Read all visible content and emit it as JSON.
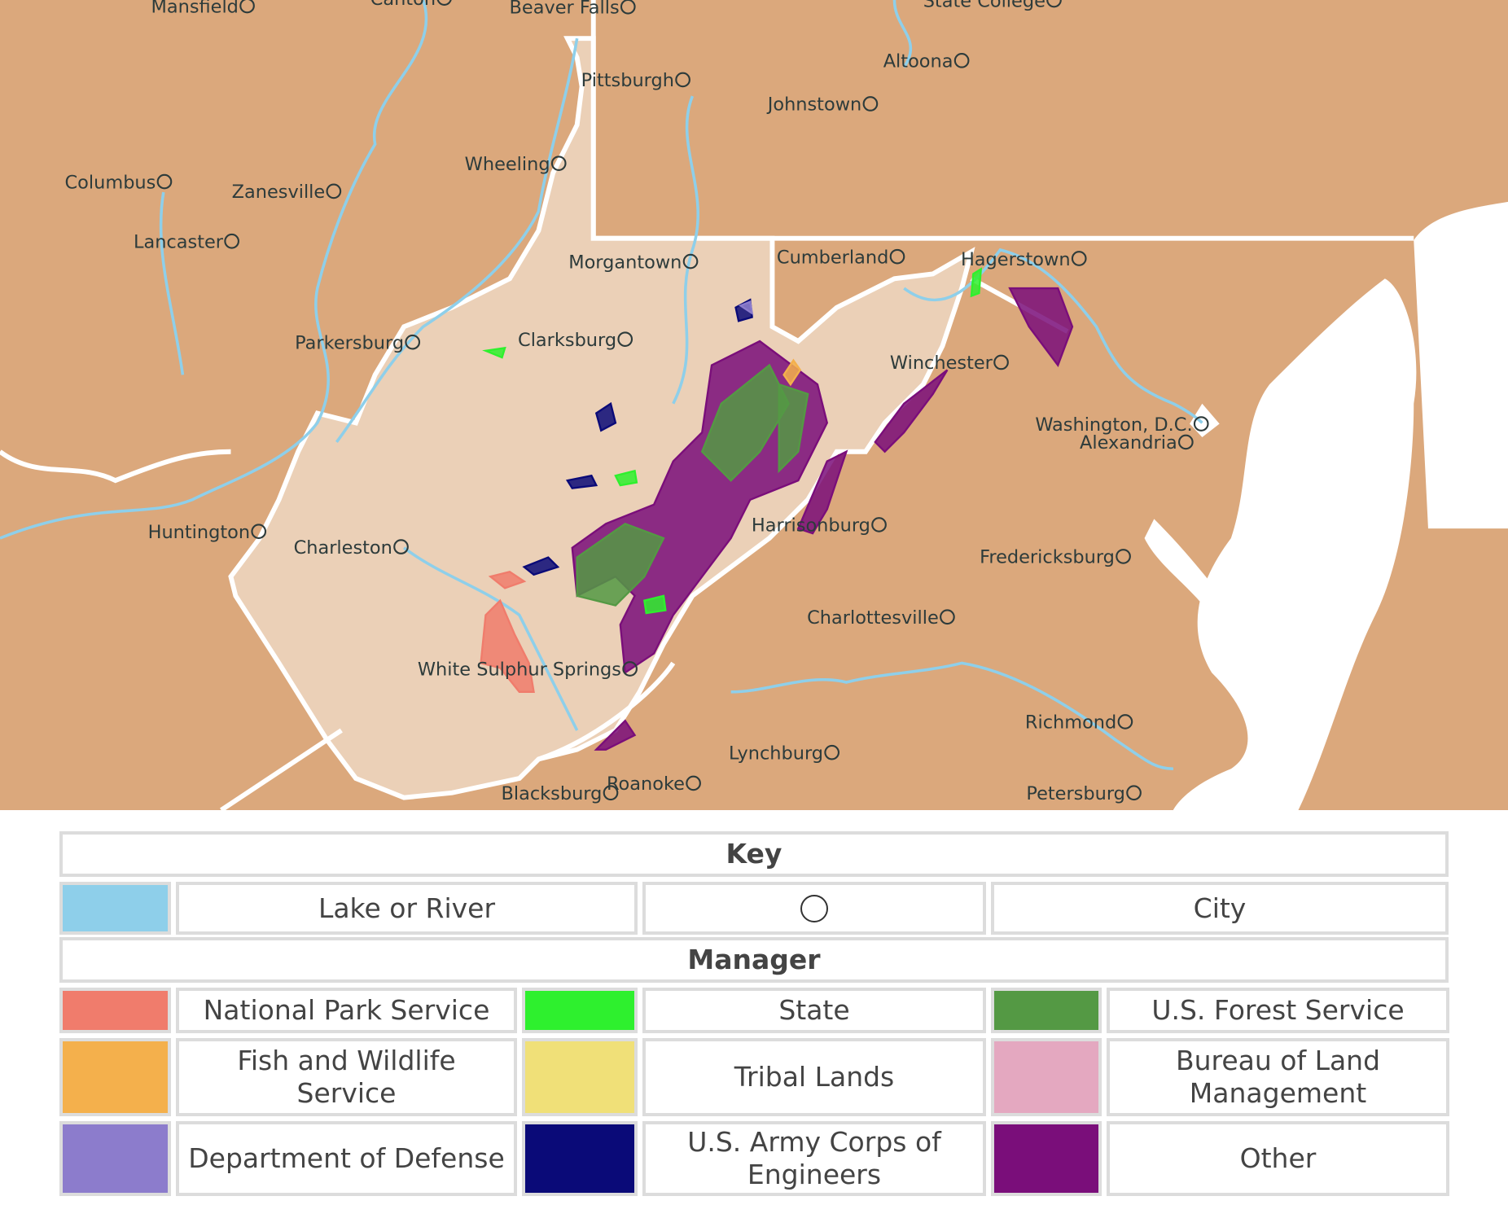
{
  "map": {
    "cities": [
      "Mansfield",
      "Canton",
      "Beaver Falls",
      "State College",
      "Pittsburgh",
      "Altoona",
      "Johnstown",
      "Wheeling",
      "Columbus",
      "Zanesville",
      "Lancaster",
      "Morgantown",
      "Cumberland",
      "Hagerstown",
      "Parkersburg",
      "Clarksburg",
      "Winchester",
      "Washington, D.C.",
      "Alexandria",
      "Huntington",
      "Charleston",
      "Harrisonburg",
      "Fredericksburg",
      "Charlottesville",
      "White Sulphur Springs",
      "Richmond",
      "Lynchburg",
      "Roanoke",
      "Blacksburg",
      "Petersburg"
    ]
  },
  "key": {
    "title": "Key",
    "items": [
      {
        "label": "Lake or River",
        "color": "#8ecfea"
      },
      {
        "label": "City"
      }
    ]
  },
  "manager": {
    "title": "Manager",
    "items": [
      {
        "label": "National Park Service",
        "color": "#f07c6c"
      },
      {
        "label": "State",
        "color": "#2ef02e"
      },
      {
        "label": "U.S. Forest Service",
        "color": "#549944"
      },
      {
        "label": "Fish and Wildlife Service",
        "color": "#f4b04c"
      },
      {
        "label": "Tribal Lands",
        "color": "#f0e078"
      },
      {
        "label": "Bureau of Land Management",
        "color": "#e4a8c0"
      },
      {
        "label": "Department of Defense",
        "color": "#8c7ccc"
      },
      {
        "label": "U.S. Army Corps of Engineers",
        "color": "#0a0a78"
      },
      {
        "label": "Other",
        "color": "#7a0e7a"
      }
    ]
  }
}
